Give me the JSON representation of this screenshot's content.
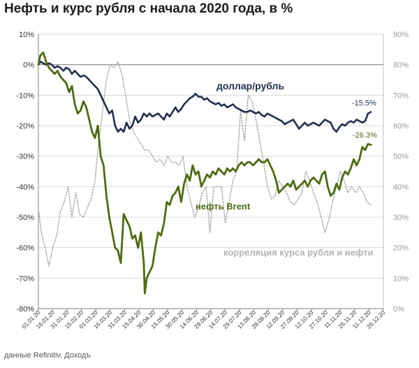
{
  "title": "Нефть и курс рубля с начала 2020 года, в %",
  "source": "данные  Refinitiv, Доходъ",
  "colors": {
    "usd": "#1f2d4d",
    "brent": "#4e6a10",
    "corr": "#aaaaaa",
    "corr_label": "#b3b3b3"
  },
  "chart_data": {
    "type": "line",
    "x_ticks": [
      "01.01.20",
      "16.01.20",
      "31.01.20",
      "15.02.20",
      "01.03.20",
      "16.03.20",
      "31.03.20",
      "15.04.20",
      "30.04.20",
      "15.05.20",
      "30.05.20",
      "14.06.20",
      "29.06.20",
      "14.07.20",
      "29.07.20",
      "13.08.20",
      "28.08.20",
      "12.09.20",
      "27.09.20",
      "12.10.20",
      "27.10.20",
      "11.11.20",
      "26.11.20",
      "11.12.20",
      "26.12.20"
    ],
    "y_left": {
      "min": -80,
      "max": 10,
      "step": 10,
      "tick_labels": [
        "10%",
        "0%",
        "-10%",
        "-20%",
        "-30%",
        "-40%",
        "-50%",
        "-60%",
        "-70%",
        "-80%"
      ]
    },
    "y_right": {
      "min": 0,
      "max": 90,
      "step": 10,
      "tick_labels": [
        "90%",
        "80%",
        "70%",
        "60%",
        "50%",
        "40%",
        "30%",
        "20%",
        "10%",
        "0%"
      ]
    },
    "series": [
      {
        "name": "доллар/рубль",
        "axis": "left",
        "end_label": "-15.5%",
        "x": [
          "01.01.20",
          "03.01.20",
          "06.01.20",
          "09.01.20",
          "12.01.20",
          "15.01.20",
          "18.01.20",
          "21.01.20",
          "24.01.20",
          "27.01.20",
          "30.01.20",
          "02.02.20",
          "05.02.20",
          "08.02.20",
          "11.02.20",
          "14.02.20",
          "17.02.20",
          "20.02.20",
          "23.02.20",
          "26.02.20",
          "29.02.20",
          "03.03.20",
          "06.03.20",
          "09.03.20",
          "12.03.20",
          "15.03.20",
          "18.03.20",
          "21.03.20",
          "24.03.20",
          "27.03.20",
          "30.03.20",
          "02.04.20",
          "05.04.20",
          "08.04.20",
          "11.04.20",
          "14.04.20",
          "17.04.20",
          "20.04.20",
          "23.04.20",
          "26.04.20",
          "29.04.20",
          "02.05.20",
          "05.05.20",
          "08.05.20",
          "11.05.20",
          "14.05.20",
          "17.05.20",
          "20.05.20",
          "23.05.20",
          "26.05.20",
          "29.05.20",
          "01.06.20",
          "04.06.20",
          "07.06.20",
          "10.06.20",
          "13.06.20",
          "16.06.20",
          "19.06.20",
          "22.06.20",
          "25.06.20",
          "28.06.20",
          "01.07.20",
          "04.07.20",
          "07.07.20",
          "10.07.20",
          "13.07.20",
          "16.07.20",
          "19.07.20",
          "22.07.20",
          "25.07.20",
          "28.07.20",
          "31.07.20",
          "03.08.20",
          "06.08.20",
          "09.08.20",
          "12.08.20",
          "15.08.20",
          "18.08.20",
          "21.08.20",
          "24.08.20",
          "27.08.20",
          "30.08.20",
          "02.09.20",
          "05.09.20",
          "08.09.20",
          "11.09.20",
          "14.09.20",
          "17.09.20",
          "20.09.20",
          "23.09.20",
          "26.09.20",
          "29.09.20",
          "02.10.20",
          "05.10.20",
          "08.10.20",
          "11.10.20",
          "14.10.20",
          "17.10.20",
          "20.10.20",
          "23.10.20",
          "26.10.20",
          "29.10.20",
          "01.11.20",
          "04.11.20",
          "07.11.20",
          "10.11.20",
          "13.11.20",
          "16.11.20",
          "19.11.20",
          "22.11.20",
          "25.11.20",
          "28.11.20",
          "01.12.20",
          "04.12.20",
          "07.12.20",
          "10.12.20",
          "13.12.20"
        ],
        "values": [
          0,
          1,
          0.5,
          0,
          0.5,
          0,
          -1,
          -0.5,
          -1,
          -2,
          -1,
          -1.5,
          -3,
          -2,
          -3,
          -4,
          -3.5,
          -4,
          -5,
          -6,
          -7,
          -8,
          -10,
          -12,
          -14,
          -16,
          -15,
          -20,
          -22,
          -21,
          -22,
          -19,
          -21,
          -20,
          -17,
          -19,
          -18,
          -16,
          -17,
          -16,
          -17,
          -16.5,
          -16,
          -17,
          -18,
          -16,
          -17,
          -15.5,
          -14,
          -15.5,
          -14.5,
          -13,
          -12,
          -11,
          -10.5,
          -9.5,
          -10.5,
          -10.5,
          -11.5,
          -11,
          -12,
          -12.5,
          -13,
          -12.5,
          -13.5,
          -13,
          -14,
          -13.5,
          -13,
          -14,
          -14.5,
          -15,
          -15.5,
          -15.5,
          -15,
          -15.5,
          -16,
          -15.5,
          -16.5,
          -17,
          -16,
          -16.5,
          -17,
          -17.5,
          -18,
          -18.5,
          -19.5,
          -19,
          -18.5,
          -18,
          -19.5,
          -21,
          -20,
          -19,
          -20,
          -19.5,
          -19,
          -19.5,
          -20,
          -19,
          -18,
          -18.5,
          -19,
          -21,
          -22,
          -20.5,
          -19.5,
          -20,
          -19,
          -18.5,
          -19,
          -18,
          -18.5,
          -19,
          -18.5,
          -16,
          -15.5
        ]
      },
      {
        "name": "нефть Brent",
        "axis": "left",
        "end_label": "-26.3%",
        "x": [
          "01.01.20",
          "03.01.20",
          "06.01.20",
          "09.01.20",
          "12.01.20",
          "15.01.20",
          "18.01.20",
          "21.01.20",
          "24.01.20",
          "27.01.20",
          "30.01.20",
          "02.02.20",
          "05.02.20",
          "08.02.20",
          "11.02.20",
          "14.02.20",
          "17.02.20",
          "20.02.20",
          "23.02.20",
          "26.02.20",
          "29.02.20",
          "03.03.20",
          "06.03.20",
          "09.03.20",
          "12.03.20",
          "15.03.20",
          "18.03.20",
          "21.03.20",
          "24.03.20",
          "27.03.20",
          "30.03.20",
          "02.04.20",
          "05.04.20",
          "08.04.20",
          "11.04.20",
          "14.04.20",
          "17.04.20",
          "20.04.20",
          "21.04.20",
          "23.04.20",
          "26.04.20",
          "29.04.20",
          "02.05.20",
          "05.05.20",
          "08.05.20",
          "11.05.20",
          "14.05.20",
          "17.05.20",
          "20.05.20",
          "23.05.20",
          "26.05.20",
          "29.05.20",
          "01.06.20",
          "04.06.20",
          "07.06.20",
          "10.06.20",
          "13.06.20",
          "16.06.20",
          "19.06.20",
          "22.06.20",
          "25.06.20",
          "28.06.20",
          "01.07.20",
          "04.07.20",
          "07.07.20",
          "10.07.20",
          "13.07.20",
          "16.07.20",
          "19.07.20",
          "22.07.20",
          "25.07.20",
          "28.07.20",
          "31.07.20",
          "03.08.20",
          "06.08.20",
          "09.08.20",
          "12.08.20",
          "15.08.20",
          "18.08.20",
          "21.08.20",
          "24.08.20",
          "27.08.20",
          "30.08.20",
          "02.09.20",
          "05.09.20",
          "08.09.20",
          "11.09.20",
          "14.09.20",
          "17.09.20",
          "20.09.20",
          "23.09.20",
          "26.09.20",
          "29.09.20",
          "02.10.20",
          "05.10.20",
          "08.10.20",
          "11.10.20",
          "14.10.20",
          "17.10.20",
          "20.10.20",
          "23.10.20",
          "26.10.20",
          "29.10.20",
          "01.11.20",
          "04.11.20",
          "07.11.20",
          "10.11.20",
          "13.11.20",
          "16.11.20",
          "19.11.20",
          "22.11.20",
          "25.11.20",
          "28.11.20",
          "01.12.20",
          "04.12.20",
          "07.12.20",
          "10.12.20",
          "13.12.20"
        ],
        "values": [
          0,
          3,
          4,
          1,
          -1,
          -2,
          -3,
          -2,
          -4,
          -5,
          -6,
          -9,
          -7,
          -13,
          -16,
          -15,
          -12,
          -14,
          -18,
          -22,
          -24,
          -20,
          -30,
          -33,
          -43,
          -50,
          -55,
          -60,
          -61,
          -65,
          -49,
          -51,
          -53,
          -57,
          -56,
          -60,
          -55,
          -65,
          -75,
          -70,
          -68,
          -66,
          -60,
          -55,
          -56,
          -52,
          -45,
          -46,
          -43,
          -42,
          -40,
          -45,
          -39,
          -36,
          -38,
          -33,
          -36,
          -35,
          -40,
          -38,
          -36,
          -37,
          -35,
          -36,
          -34,
          -35,
          -36,
          -34,
          -35,
          -34,
          -35,
          -33,
          -32,
          -33,
          -32,
          -32,
          -33,
          -32,
          -31,
          -32,
          -32,
          -31,
          -33,
          -35,
          -38,
          -42,
          -41,
          -40,
          -39,
          -40,
          -38,
          -41,
          -40,
          -39,
          -38,
          -40,
          -38,
          -37,
          -38,
          -39,
          -36,
          -35,
          -40,
          -43,
          -42,
          -39,
          -41,
          -37,
          -35,
          -36,
          -34,
          -31,
          -33,
          -31,
          -27,
          -28,
          -26,
          -26.3
        ]
      },
      {
        "name": "корреляция курса рубля и нефти",
        "axis": "right",
        "x": [
          "01.01.20",
          "04.01.20",
          "08.01.20",
          "12.01.20",
          "16.01.20",
          "20.01.20",
          "24.01.20",
          "28.01.20",
          "01.02.20",
          "05.02.20",
          "09.02.20",
          "13.02.20",
          "17.02.20",
          "21.02.20",
          "25.02.20",
          "29.02.20",
          "04.03.20",
          "08.03.20",
          "12.03.20",
          "16.03.20",
          "20.03.20",
          "24.03.20",
          "28.03.20",
          "01.04.20",
          "05.04.20",
          "09.04.20",
          "13.04.20",
          "17.04.20",
          "21.04.20",
          "25.04.20",
          "29.04.20",
          "03.05.20",
          "07.05.20",
          "11.05.20",
          "15.05.20",
          "19.05.20",
          "23.05.20",
          "27.05.20",
          "31.05.20",
          "04.06.20",
          "08.06.20",
          "12.06.20",
          "16.06.20",
          "20.06.20",
          "24.06.20",
          "28.06.20",
          "02.07.20",
          "06.07.20",
          "10.07.20",
          "14.07.20",
          "18.07.20",
          "22.07.20",
          "26.07.20",
          "30.07.20",
          "03.08.20",
          "07.08.20",
          "11.08.20",
          "15.08.20",
          "19.08.20",
          "23.08.20",
          "27.08.20",
          "31.08.20",
          "04.09.20",
          "08.09.20",
          "12.09.20",
          "16.09.20",
          "20.09.20",
          "24.09.20",
          "28.09.20",
          "02.10.20",
          "06.10.20",
          "10.10.20",
          "14.10.20",
          "18.10.20",
          "22.10.20",
          "26.10.20",
          "30.10.20",
          "03.11.20",
          "07.11.20",
          "11.11.20",
          "15.11.20",
          "19.11.20",
          "23.11.20",
          "27.11.20",
          "01.12.20",
          "05.12.20",
          "09.12.20",
          "13.12.20"
        ],
        "values": [
          33,
          25,
          20,
          14,
          20,
          24,
          32,
          35,
          40,
          30,
          38,
          31,
          30,
          33,
          36,
          42,
          55,
          65,
          75,
          80,
          79,
          81,
          77,
          70,
          62,
          58,
          56,
          54,
          52,
          52,
          50,
          48,
          49,
          47,
          50,
          48,
          48,
          47,
          50,
          40,
          35,
          30,
          33,
          38,
          40,
          25,
          40,
          40,
          40,
          28,
          35,
          42,
          45,
          65,
          55,
          70,
          68,
          62,
          55,
          48,
          40,
          36,
          37,
          42,
          40,
          38,
          35,
          34,
          36,
          38,
          45,
          42,
          38,
          35,
          30,
          25,
          29,
          35,
          40,
          45,
          42,
          38,
          40,
          38,
          40,
          38,
          35,
          34
        ]
      }
    ],
    "labels": {
      "usd": "доллар/рубль",
      "brent": "нефть Brent",
      "corr": "корреляция курса рубля и нефти"
    },
    "grid": true,
    "legend": "inline labels"
  }
}
